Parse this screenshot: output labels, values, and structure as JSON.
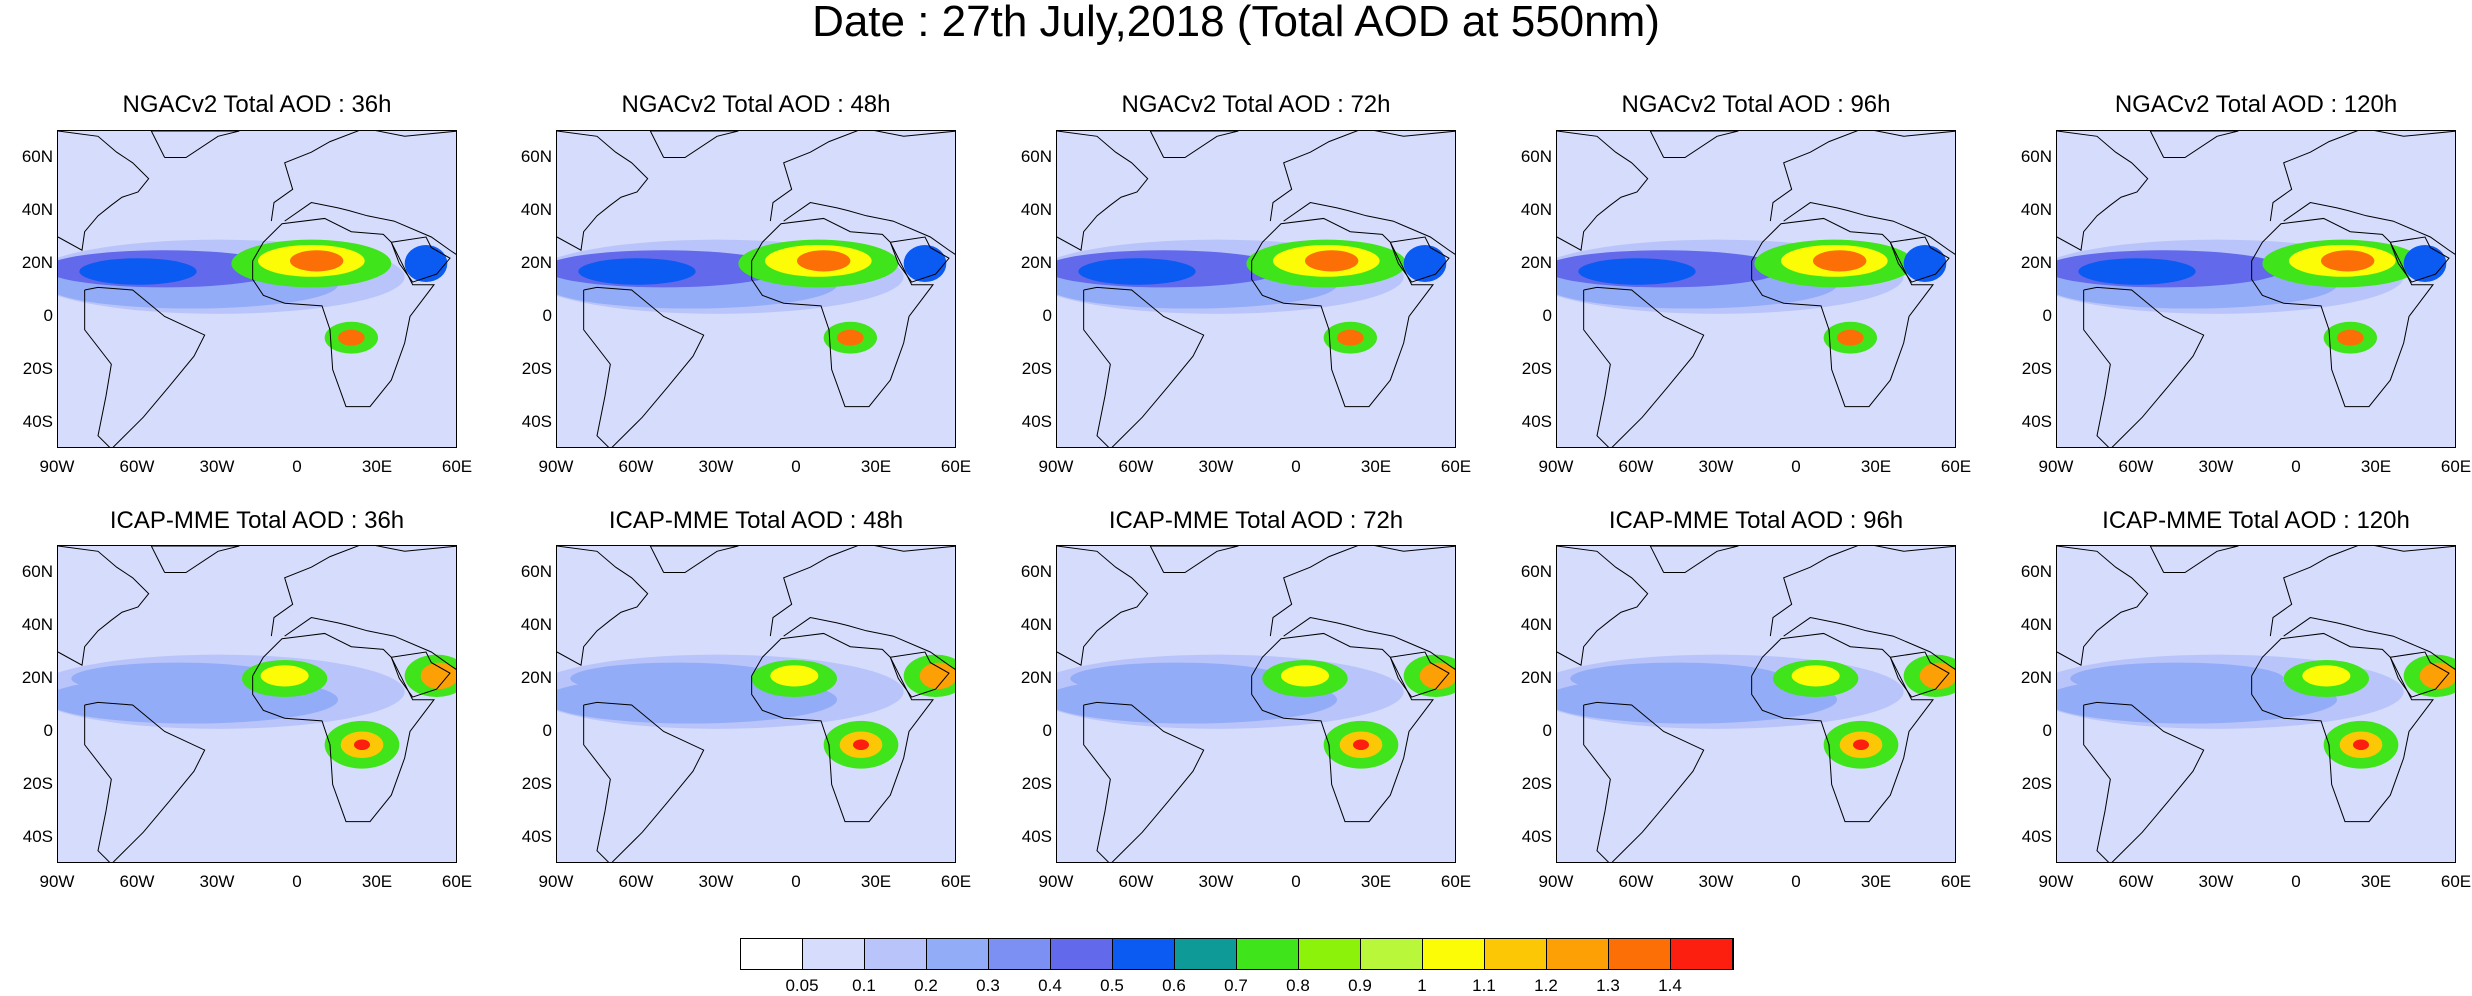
{
  "title": "Date : 27th July,2018 (Total AOD at 550nm)",
  "rows": [
    {
      "model": "NGACv2",
      "panels": [
        {
          "title": "NGACv2 Total AOD : 36h",
          "lead": "36h"
        },
        {
          "title": "NGACv2 Total AOD : 48h",
          "lead": "48h"
        },
        {
          "title": "NGACv2 Total AOD : 72h",
          "lead": "72h"
        },
        {
          "title": "NGACv2 Total AOD : 96h",
          "lead": "96h"
        },
        {
          "title": "NGACv2 Total AOD : 120h",
          "lead": "120h"
        }
      ]
    },
    {
      "model": "ICAP-MME",
      "panels": [
        {
          "title": "ICAP-MME Total AOD : 36h",
          "lead": "36h"
        },
        {
          "title": "ICAP-MME Total AOD : 48h",
          "lead": "48h"
        },
        {
          "title": "ICAP-MME Total AOD : 72h",
          "lead": "72h"
        },
        {
          "title": "ICAP-MME Total AOD : 96h",
          "lead": "96h"
        },
        {
          "title": "ICAP-MME Total AOD : 120h",
          "lead": "120h"
        }
      ]
    }
  ],
  "lat_ticks": [
    "60N",
    "40N",
    "20N",
    "0",
    "20S",
    "40S"
  ],
  "lon_ticks": [
    "90W",
    "60W",
    "30W",
    "0",
    "30E",
    "60E"
  ],
  "colorbar": {
    "colors": [
      "#ffffff",
      "#d6dcfc",
      "#b9c4fa",
      "#93acf7",
      "#7b90f2",
      "#6269ea",
      "#0b5bf2",
      "#0e9a96",
      "#3fe41a",
      "#8cf20a",
      "#b8f73a",
      "#fcfc06",
      "#fcc806",
      "#fca006",
      "#fc6f06",
      "#fc1f10"
    ],
    "labels": [
      "0.05",
      "0.1",
      "0.2",
      "0.3",
      "0.4",
      "0.5",
      "0.6",
      "0.7",
      "0.8",
      "0.9",
      "1",
      "1.1",
      "1.2",
      "1.3",
      "1.4"
    ]
  }
}
